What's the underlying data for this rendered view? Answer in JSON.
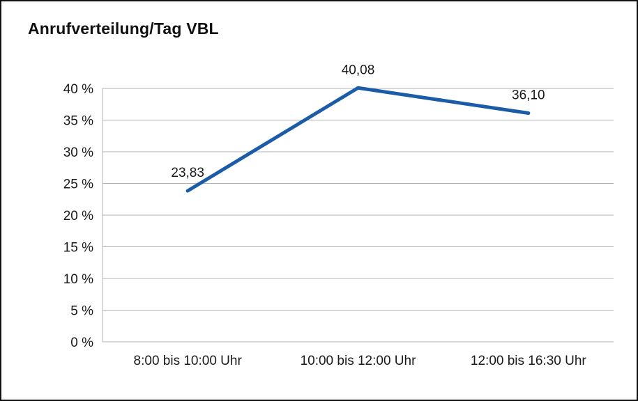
{
  "chart": {
    "title": "Anrufverteilung/Tag VBL"
  },
  "chart_data": {
    "type": "line",
    "title": "Anrufverteilung/Tag VBL",
    "categories": [
      "8:00 bis 10:00 Uhr",
      "10:00 bis 12:00 Uhr",
      "12:00 bis 16:30 Uhr"
    ],
    "values": [
      23.83,
      40.08,
      36.1
    ],
    "point_labels": [
      "23,83",
      "40,08",
      "36,10"
    ],
    "xlabel": "",
    "ylabel": "",
    "ylim": [
      0,
      40
    ],
    "y_tick_step": 5,
    "y_tick_labels": [
      "0 %",
      "5 %",
      "10 %",
      "15 %",
      "20 %",
      "25 %",
      "30 %",
      "35 %",
      "40 %"
    ],
    "grid": true,
    "legend": "none",
    "line_color": "#1a5ca8",
    "grid_color": "#b3b3b3",
    "text_color": "#1a1a1a",
    "frame_color": "#111111",
    "background": "#ffffff"
  }
}
